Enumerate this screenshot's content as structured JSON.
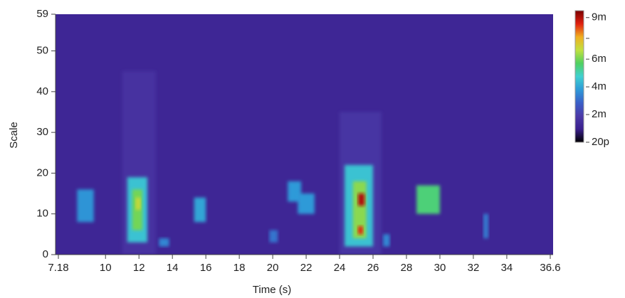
{
  "chart_data": {
    "type": "heatmap",
    "x_label": "Time (s)",
    "y_label": "Scale",
    "xlim": [
      7.18,
      36.6
    ],
    "xticks": [
      {
        "value": 7.18,
        "label": "7.18"
      },
      10,
      12,
      14,
      16,
      18,
      20,
      22,
      24,
      26,
      28,
      30,
      32,
      34,
      {
        "value": 36.6,
        "label": "36.6"
      }
    ],
    "ylim": [
      0,
      59
    ],
    "yticks": [
      0,
      10,
      20,
      30,
      40,
      50,
      59
    ],
    "zlim": [
      0,
      0.0095
    ],
    "zticks": [
      {
        "value": 0.009,
        "label": "9m"
      },
      0.0075,
      {
        "value": 0.006,
        "label": "6m"
      },
      {
        "value": 0.004,
        "label": "4m"
      },
      {
        "value": 0.002,
        "label": "2m"
      },
      {
        "value": 2e-11,
        "label": "20p"
      }
    ],
    "colormap": [
      "#000000",
      "#3a1f8e",
      "#4b3aa8",
      "#3a5fc8",
      "#2e9ad8",
      "#40d0d0",
      "#50d060",
      "#c0e040",
      "#f0b020",
      "#e02010",
      "#7a0000"
    ],
    "cells": [
      {
        "x": [
          7.18,
          36.6
        ],
        "y": [
          0,
          59
        ],
        "value": 0.0012
      },
      {
        "x": [
          11,
          13
        ],
        "y": [
          0,
          45
        ],
        "value": 0.0016
      },
      {
        "x": [
          24,
          26.5
        ],
        "y": [
          0,
          35
        ],
        "value": 0.0017
      },
      {
        "x": [
          8.3,
          9.3
        ],
        "y": [
          8,
          16
        ],
        "value": 0.0037
      },
      {
        "x": [
          11.3,
          12.5
        ],
        "y": [
          3,
          19
        ],
        "value": 0.0045
      },
      {
        "x": [
          11.6,
          12.2
        ],
        "y": [
          6,
          16
        ],
        "value": 0.006
      },
      {
        "x": [
          11.8,
          12.1
        ],
        "y": [
          11,
          14
        ],
        "value": 0.0068
      },
      {
        "x": [
          13.2,
          13.8
        ],
        "y": [
          2,
          4
        ],
        "value": 0.0035
      },
      {
        "x": [
          15.3,
          16
        ],
        "y": [
          8,
          14
        ],
        "value": 0.004
      },
      {
        "x": [
          19.8,
          20.3
        ],
        "y": [
          3,
          6
        ],
        "value": 0.0032
      },
      {
        "x": [
          20.9,
          21.7
        ],
        "y": [
          13,
          18
        ],
        "value": 0.0038
      },
      {
        "x": [
          21.5,
          22.5
        ],
        "y": [
          10,
          15
        ],
        "value": 0.0038
      },
      {
        "x": [
          24.3,
          26
        ],
        "y": [
          2,
          22
        ],
        "value": 0.0045
      },
      {
        "x": [
          24.8,
          25.6
        ],
        "y": [
          4,
          18
        ],
        "value": 0.0062
      },
      {
        "x": [
          25.1,
          25.5
        ],
        "y": [
          12,
          15
        ],
        "value": 0.009
      },
      {
        "x": [
          25.1,
          25.4
        ],
        "y": [
          5,
          7
        ],
        "value": 0.0085
      },
      {
        "x": [
          26.6,
          27
        ],
        "y": [
          2,
          5
        ],
        "value": 0.0035
      },
      {
        "x": [
          28.6,
          30
        ],
        "y": [
          10,
          17
        ],
        "value": 0.0055
      },
      {
        "x": [
          32.6,
          32.9
        ],
        "y": [
          4,
          10
        ],
        "value": 0.0033
      }
    ]
  }
}
